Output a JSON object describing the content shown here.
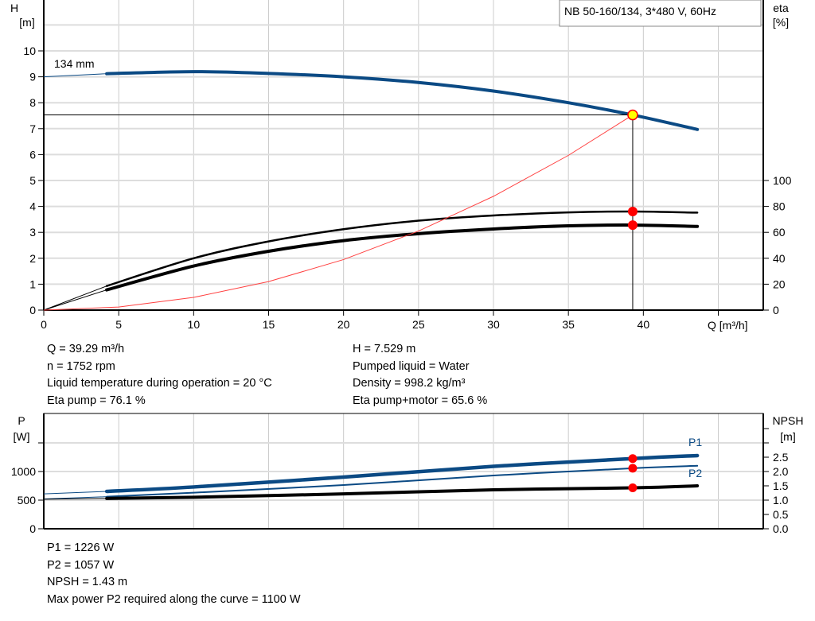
{
  "chart_data": [
    {
      "type": "line",
      "title": "NB 50-160/134, 3*480 V, 60Hz",
      "xlabel": "Q [m³/h]",
      "ylabel_left": [
        "H",
        "[m]"
      ],
      "ylabel_right": [
        "eta",
        "[%]"
      ],
      "xlim": [
        0,
        48
      ],
      "ylim_left": [
        0,
        12
      ],
      "ylim_right": [
        0,
        100
      ],
      "xticks": [
        0,
        5,
        10,
        15,
        20,
        25,
        30,
        35,
        40
      ],
      "yticks_left": [
        0,
        1,
        2,
        3,
        4,
        5,
        6,
        7,
        8,
        9,
        10
      ],
      "yticks_right": [
        0,
        20,
        40,
        60,
        80,
        100
      ],
      "grid": true,
      "annotation": "134 mm",
      "series": [
        {
          "id": "head",
          "axis": "H",
          "color": "#0b4a84",
          "x": [
            0,
            4.2,
            10,
            15,
            20,
            25,
            30,
            35,
            39.29,
            43.6
          ],
          "y": [
            9.0,
            9.12,
            9.2,
            9.13,
            9.0,
            8.78,
            8.45,
            8.0,
            7.529,
            6.97
          ]
        },
        {
          "id": "eta-pump",
          "axis": "eta",
          "color": "#000000",
          "x": [
            0,
            4.2,
            10,
            15,
            20,
            25,
            30,
            35,
            39.29,
            43.6
          ],
          "y": [
            0,
            18.6,
            40,
            53,
            62.4,
            69,
            73,
            75.4,
            76.1,
            75.2
          ]
        },
        {
          "id": "eta-pump-motor",
          "axis": "eta",
          "color": "#000000",
          "x": [
            0,
            4.2,
            10,
            15,
            20,
            25,
            30,
            35,
            39.29,
            43.6
          ],
          "y": [
            0,
            15.6,
            34,
            45.4,
            53.6,
            59,
            62.6,
            65,
            65.6,
            64.6
          ]
        },
        {
          "id": "system-curve",
          "axis": "H",
          "color": "#ff4040",
          "x": [
            0,
            5,
            10,
            15,
            20,
            25,
            30,
            35,
            39.29
          ],
          "y": [
            0,
            0.12,
            0.49,
            1.1,
            1.95,
            3.05,
            4.39,
            5.97,
            7.529
          ]
        }
      ],
      "duty_point": {
        "Q": 39.29,
        "H": 7.529,
        "eta_pump": 76.1,
        "eta_pump_motor": 65.6
      }
    },
    {
      "type": "line",
      "xlim": [
        0,
        48
      ],
      "ylabel_left": [
        "P",
        "[W]"
      ],
      "ylabel_right": [
        "NPSH",
        "[m]"
      ],
      "ylim_left": [
        0,
        2000
      ],
      "ylim_right": [
        0,
        4
      ],
      "yticks_left": [
        0,
        500,
        1000
      ],
      "yticks_right": [
        "0.0",
        "0.5",
        "1.0",
        "1.5",
        "2.0",
        "2.5"
      ],
      "grid": true,
      "series": [
        {
          "id": "P1",
          "name": "P1",
          "axis": "P",
          "color": "#0b4a84",
          "x": [
            0,
            4.2,
            10,
            20,
            30,
            39.29,
            43.6
          ],
          "y": [
            610,
            653,
            730,
            903,
            1090,
            1226,
            1278
          ]
        },
        {
          "id": "P2",
          "name": "P2",
          "axis": "P",
          "color": "#0b4a84",
          "x": [
            0,
            4.2,
            10,
            20,
            30,
            39.29,
            43.6
          ],
          "y": [
            520,
            560,
            630,
            764,
            930,
            1057,
            1100
          ]
        },
        {
          "id": "NPSH",
          "axis": "NPSH",
          "color": "#000000",
          "x": [
            0,
            4.2,
            10,
            20,
            30,
            39.29,
            43.6
          ],
          "y": [
            1.03,
            1.06,
            1.1,
            1.22,
            1.36,
            1.43,
            1.5
          ]
        }
      ],
      "duty_point": {
        "Q": 39.29,
        "P1": 1226,
        "P2": 1057,
        "NPSH": 1.43
      }
    }
  ],
  "results": {
    "q": "Q = 39.29 m³/h",
    "n": "n = 1752 rpm",
    "temp": "Liquid temperature during operation = 20 °C",
    "eta_pump": "Eta pump = 76.1 %",
    "h": "H = 7.529 m",
    "liquid": "Pumped liquid = Water",
    "density": "Density = 998.2 kg/m³",
    "eta_total": "Eta pump+motor = 65.6 %",
    "p1": "P1 = 1226 W",
    "p2": "P2 = 1057 W",
    "npsh": "NPSH = 1.43 m",
    "max_p2": "Max power P2 required along the curve = 1100 W"
  }
}
